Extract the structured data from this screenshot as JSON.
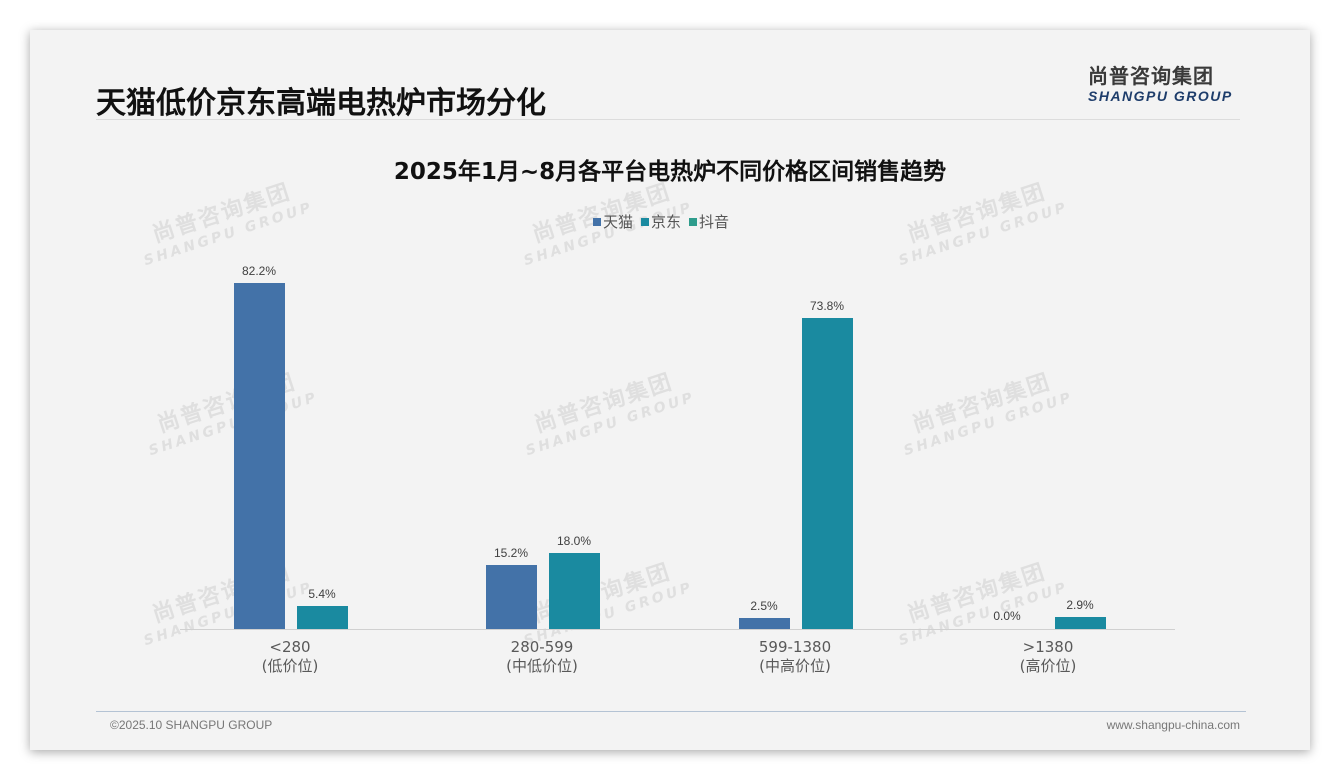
{
  "header": {
    "title": "天猫低价京东高端电热炉市场分化",
    "logo_cn": "尚普咨询集团",
    "logo_en": "SHANGPU GROUP"
  },
  "watermark": {
    "cn": "尚普咨询集团",
    "en": "SHANGPU GROUP"
  },
  "footer": {
    "copyright": "©2025.10 SHANGPU GROUP",
    "website": "www.shangpu-china.com"
  },
  "colors": {
    "tmall": "#4372a8",
    "jd": "#1a8aa0",
    "douyin": "#2e9c8c",
    "axis": "#d0d0d0"
  },
  "chart_data": {
    "type": "bar",
    "title": "2025年1月~8月各平台电热炉不同价格区间销售趋势",
    "xlabel": "",
    "ylabel": "",
    "grid": false,
    "legend_position": "top",
    "categories": [
      "<280\n(低价位)",
      "280-599\n(中低价位)",
      "599-1380\n(中高价位)",
      ">1380\n(高价位)"
    ],
    "category_ranges": [
      "<280",
      "280-599",
      "599-1380",
      ">1380"
    ],
    "category_tiers": [
      "(低价位)",
      "(中低价位)",
      "(中高价位)",
      "(高价位)"
    ],
    "series": [
      {
        "name": "天猫",
        "values": [
          82.2,
          15.2,
          2.5,
          0.0
        ],
        "labels": [
          "82.2%",
          "15.2%",
          "2.5%",
          "0.0%"
        ]
      },
      {
        "name": "京东",
        "values": [
          5.4,
          18.0,
          73.8,
          2.9
        ],
        "labels": [
          "5.4%",
          "18.0%",
          "73.8%",
          "2.9%"
        ]
      },
      {
        "name": "抖音",
        "values": [],
        "labels": []
      }
    ],
    "unit": "%",
    "ylim": [
      0,
      87.6
    ]
  }
}
